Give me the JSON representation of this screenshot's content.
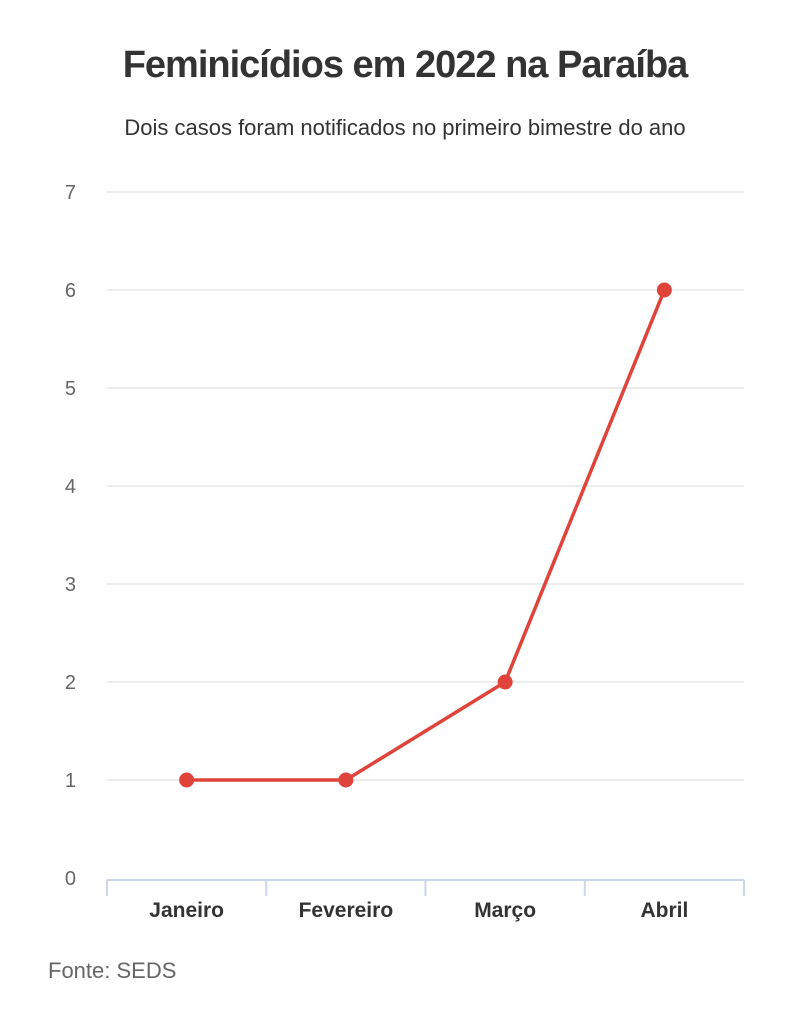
{
  "header": {
    "title": "Feminicídios em 2022 na Paraíba",
    "subtitle": "Dois casos foram notificados no primeiro bimestre do ano"
  },
  "footer": {
    "source": "Fonte: SEDS"
  },
  "colors": {
    "series": "#e0433a",
    "grid": "#e6e6e6",
    "axis": "#ccd6eb"
  },
  "chart_data": {
    "type": "line",
    "categories": [
      "Janeiro",
      "Fevereiro",
      "Março",
      "Abril"
    ],
    "series": [
      {
        "values": [
          1,
          1,
          2,
          6
        ]
      }
    ],
    "ylim": [
      0,
      7
    ],
    "yticks": [
      0,
      1,
      2,
      3,
      4,
      5,
      6,
      7
    ],
    "grid": true,
    "legend": "none"
  }
}
